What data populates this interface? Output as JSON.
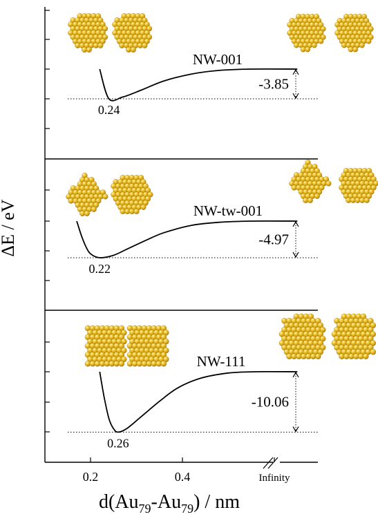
{
  "chart_data": {
    "type": "line",
    "ylabel": "ΔE / eV",
    "xlabel": {
      "prefix": "d(Au",
      "sub1": "79",
      "mid": "-Au",
      "sub2": "79",
      "suffix": ") / nm"
    },
    "x_ticks": [
      "0.2",
      "0.4",
      "Infinity"
    ],
    "x_tick_values": [
      0.2,
      0.4,
      0.6
    ],
    "xlim": [
      0.1,
      0.65
    ],
    "panels": [
      {
        "name": "NW-001",
        "min_x": 0.24,
        "min_label": "0.24",
        "start_x": 0.22,
        "energy_difference": -3.85,
        "energy_label": "-3.85",
        "curve": [
          {
            "x": 0.22,
            "y": 0.0
          },
          {
            "x": 0.24,
            "y": -3.85
          },
          {
            "x": 0.27,
            "y": -3.62
          },
          {
            "x": 0.31,
            "y": -2.73
          },
          {
            "x": 0.36,
            "y": -1.53
          },
          {
            "x": 0.42,
            "y": -0.64
          },
          {
            "x": 0.48,
            "y": -0.17
          },
          {
            "x": 0.55,
            "y": 0.0
          },
          {
            "x": 0.65,
            "y": 0.0
          }
        ]
      },
      {
        "name": "NW-tw-001",
        "min_x": 0.22,
        "min_label": "0.22",
        "start_x": 0.17,
        "energy_difference": -4.97,
        "energy_label": "-4.97",
        "curve": [
          {
            "x": 0.17,
            "y": 0.0
          },
          {
            "x": 0.18,
            "y": -1.94
          },
          {
            "x": 0.19,
            "y": -3.47
          },
          {
            "x": 0.2,
            "y": -4.44
          },
          {
            "x": 0.22,
            "y": -4.97
          },
          {
            "x": 0.25,
            "y": -4.64
          },
          {
            "x": 0.28,
            "y": -3.78
          },
          {
            "x": 0.32,
            "y": -2.62
          },
          {
            "x": 0.36,
            "y": -1.57
          },
          {
            "x": 0.42,
            "y": -0.57
          },
          {
            "x": 0.48,
            "y": -0.16
          },
          {
            "x": 0.55,
            "y": 0.0
          },
          {
            "x": 0.65,
            "y": 0.0
          }
        ]
      },
      {
        "name": "NW-111",
        "min_x": 0.26,
        "min_label": "0.26",
        "start_x": 0.22,
        "energy_difference": -10.06,
        "energy_label": "-10.06",
        "curve": [
          {
            "x": 0.22,
            "y": 0.0
          },
          {
            "x": 0.23,
            "y": -4.36
          },
          {
            "x": 0.24,
            "y": -7.79
          },
          {
            "x": 0.25,
            "y": -9.48
          },
          {
            "x": 0.26,
            "y": -10.06
          },
          {
            "x": 0.28,
            "y": -9.4
          },
          {
            "x": 0.31,
            "y": -7.5
          },
          {
            "x": 0.35,
            "y": -4.93
          },
          {
            "x": 0.39,
            "y": -2.68
          },
          {
            "x": 0.44,
            "y": -1.07
          },
          {
            "x": 0.5,
            "y": -0.21
          },
          {
            "x": 0.56,
            "y": 0.0
          },
          {
            "x": 0.65,
            "y": 0.0
          }
        ]
      }
    ],
    "axis_break": "//",
    "grid": false,
    "colors": {
      "curve": "#000000",
      "particles": "#e0b51e"
    }
  }
}
